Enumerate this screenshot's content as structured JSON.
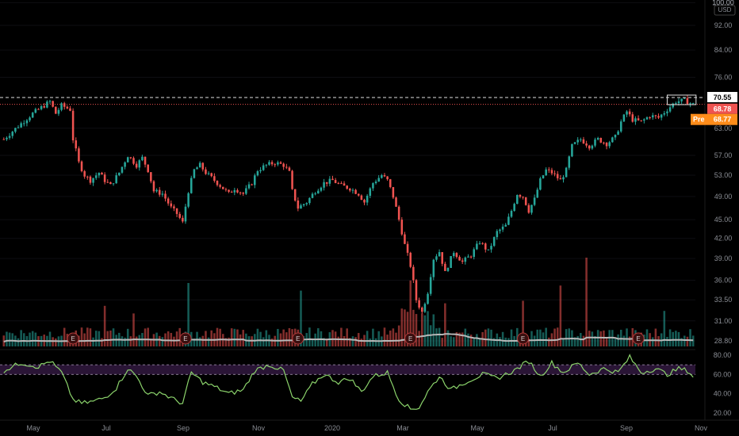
{
  "currency": "USD",
  "price_axis": {
    "ticks": [
      "100.00",
      "92.00",
      "84.00",
      "76.00",
      "70.55",
      "68.78",
      "68.77",
      "63.00",
      "57.00",
      "53.00",
      "49.00",
      "45.00",
      "42.00",
      "39.00",
      "36.00",
      "33.50",
      "31.00",
      "28.80"
    ],
    "tick_values": [
      100,
      92,
      84,
      76,
      63,
      57,
      53,
      49,
      45,
      42,
      39,
      36,
      33.5,
      31,
      28.8
    ],
    "tick_labels": [
      "100.00",
      "92.00",
      "84.00",
      "76.00",
      "63.00",
      "57.00",
      "53.00",
      "49.00",
      "45.00",
      "42.00",
      "39.00",
      "36.00",
      "33.50",
      "31.00",
      "28.80"
    ],
    "scale": "log"
  },
  "rsi_axis": {
    "tick_values": [
      80,
      60,
      40,
      20
    ],
    "tick_labels": [
      "80.00",
      "60.00",
      "40.00",
      "20.00"
    ],
    "overbought": 70,
    "oversold": 60
  },
  "time_axis": {
    "labels": [
      "May",
      "Jul",
      "Sep",
      "Nov",
      "2020",
      "Mar",
      "May",
      "Jul",
      "Sep",
      "Nov"
    ]
  },
  "badges": {
    "high_line": "70.55",
    "last_price": "68.78",
    "pre_label": "Pre",
    "pre_price": "68.77"
  },
  "earnings_marker": "E",
  "colors": {
    "up": "#26a69a",
    "down": "#ef5350",
    "rsi_line": "#8bd36b",
    "rsi_band": "#2a1536",
    "volume_ma": "#b8b8b8",
    "high_line": "#e0e0e0",
    "last_line": "#ef5350",
    "pre_badge": "#ff8c1a",
    "last_badge": "#ef5350"
  },
  "chart_data": {
    "type": "candlestick",
    "price_anchors": [
      {
        "x": 0,
        "y": 60.5
      },
      {
        "x": 5,
        "y": 63.5
      },
      {
        "x": 10,
        "y": 66.5
      },
      {
        "x": 14,
        "y": 68.5
      },
      {
        "x": 16,
        "y": 69.5
      },
      {
        "x": 18,
        "y": 66.5
      },
      {
        "x": 20,
        "y": 68.5
      },
      {
        "x": 23,
        "y": 67.5
      },
      {
        "x": 24,
        "y": 60.5
      },
      {
        "x": 26,
        "y": 55.5
      },
      {
        "x": 28,
        "y": 53.0
      },
      {
        "x": 30,
        "y": 52.0
      },
      {
        "x": 33,
        "y": 53.5
      },
      {
        "x": 35,
        "y": 52.0
      },
      {
        "x": 37,
        "y": 51.0
      },
      {
        "x": 40,
        "y": 53.5
      },
      {
        "x": 43,
        "y": 57.0
      },
      {
        "x": 46,
        "y": 55.0
      },
      {
        "x": 48,
        "y": 56.5
      },
      {
        "x": 50,
        "y": 54.0
      },
      {
        "x": 52,
        "y": 50.0
      },
      {
        "x": 55,
        "y": 49.5
      },
      {
        "x": 58,
        "y": 47.0
      },
      {
        "x": 60,
        "y": 46.0
      },
      {
        "x": 62,
        "y": 44.5
      },
      {
        "x": 64,
        "y": 50.0
      },
      {
        "x": 66,
        "y": 54.0
      },
      {
        "x": 68,
        "y": 55.0
      },
      {
        "x": 70,
        "y": 53.5
      },
      {
        "x": 73,
        "y": 52.0
      },
      {
        "x": 76,
        "y": 50.5
      },
      {
        "x": 78,
        "y": 49.5
      },
      {
        "x": 80,
        "y": 50.5
      },
      {
        "x": 83,
        "y": 49.5
      },
      {
        "x": 86,
        "y": 51.5
      },
      {
        "x": 88,
        "y": 54.0
      },
      {
        "x": 91,
        "y": 55.0
      },
      {
        "x": 94,
        "y": 55.5
      },
      {
        "x": 97,
        "y": 55.0
      },
      {
        "x": 99,
        "y": 53.5
      },
      {
        "x": 100,
        "y": 50.0
      },
      {
        "x": 102,
        "y": 47.0
      },
      {
        "x": 105,
        "y": 48.0
      },
      {
        "x": 108,
        "y": 50.0
      },
      {
        "x": 111,
        "y": 51.5
      },
      {
        "x": 114,
        "y": 52.0
      },
      {
        "x": 117,
        "y": 51.0
      },
      {
        "x": 120,
        "y": 50.5
      },
      {
        "x": 123,
        "y": 49.5
      },
      {
        "x": 125,
        "y": 48.0
      },
      {
        "x": 128,
        "y": 51.5
      },
      {
        "x": 131,
        "y": 53.0
      },
      {
        "x": 133,
        "y": 52.0
      },
      {
        "x": 135,
        "y": 49.0
      },
      {
        "x": 137,
        "y": 45.0
      },
      {
        "x": 139,
        "y": 41.0
      },
      {
        "x": 141,
        "y": 38.0
      },
      {
        "x": 143,
        "y": 33.5
      },
      {
        "x": 145,
        "y": 32.0
      },
      {
        "x": 147,
        "y": 34.5
      },
      {
        "x": 149,
        "y": 39.0
      },
      {
        "x": 151,
        "y": 40.0
      },
      {
        "x": 153,
        "y": 37.0
      },
      {
        "x": 156,
        "y": 40.0
      },
      {
        "x": 159,
        "y": 38.5
      },
      {
        "x": 162,
        "y": 39.5
      },
      {
        "x": 165,
        "y": 41.5
      },
      {
        "x": 168,
        "y": 40.0
      },
      {
        "x": 171,
        "y": 43.0
      },
      {
        "x": 174,
        "y": 44.0
      },
      {
        "x": 176,
        "y": 46.5
      },
      {
        "x": 178,
        "y": 49.5
      },
      {
        "x": 180,
        "y": 49.0
      },
      {
        "x": 182,
        "y": 46.5
      },
      {
        "x": 184,
        "y": 48.5
      },
      {
        "x": 186,
        "y": 52.0
      },
      {
        "x": 188,
        "y": 54.0
      },
      {
        "x": 190,
        "y": 53.5
      },
      {
        "x": 193,
        "y": 52.0
      },
      {
        "x": 195,
        "y": 54.0
      },
      {
        "x": 197,
        "y": 59.0
      },
      {
        "x": 200,
        "y": 60.5
      },
      {
        "x": 203,
        "y": 59.0
      },
      {
        "x": 206,
        "y": 60.5
      },
      {
        "x": 209,
        "y": 59.5
      },
      {
        "x": 212,
        "y": 61.0
      },
      {
        "x": 214,
        "y": 64.5
      },
      {
        "x": 216,
        "y": 67.0
      },
      {
        "x": 218,
        "y": 65.0
      },
      {
        "x": 221,
        "y": 64.5
      },
      {
        "x": 224,
        "y": 66.0
      },
      {
        "x": 227,
        "y": 65.5
      },
      {
        "x": 230,
        "y": 67.5
      },
      {
        "x": 233,
        "y": 69.5
      },
      {
        "x": 236,
        "y": 69.8
      },
      {
        "x": 239,
        "y": 68.8
      }
    ],
    "candle_count": 240,
    "rsi_anchors": [
      {
        "x": 0,
        "y": 64
      },
      {
        "x": 6,
        "y": 72
      },
      {
        "x": 12,
        "y": 68
      },
      {
        "x": 16,
        "y": 74
      },
      {
        "x": 20,
        "y": 62
      },
      {
        "x": 24,
        "y": 34
      },
      {
        "x": 27,
        "y": 30
      },
      {
        "x": 31,
        "y": 32
      },
      {
        "x": 35,
        "y": 36
      },
      {
        "x": 39,
        "y": 46
      },
      {
        "x": 43,
        "y": 66
      },
      {
        "x": 46,
        "y": 58
      },
      {
        "x": 50,
        "y": 38
      },
      {
        "x": 54,
        "y": 42
      },
      {
        "x": 59,
        "y": 34
      },
      {
        "x": 62,
        "y": 30
      },
      {
        "x": 65,
        "y": 62
      },
      {
        "x": 69,
        "y": 52
      },
      {
        "x": 74,
        "y": 46
      },
      {
        "x": 78,
        "y": 40
      },
      {
        "x": 83,
        "y": 44
      },
      {
        "x": 87,
        "y": 64
      },
      {
        "x": 92,
        "y": 70
      },
      {
        "x": 97,
        "y": 64
      },
      {
        "x": 100,
        "y": 36
      },
      {
        "x": 103,
        "y": 32
      },
      {
        "x": 107,
        "y": 50
      },
      {
        "x": 111,
        "y": 60
      },
      {
        "x": 116,
        "y": 52
      },
      {
        "x": 120,
        "y": 56
      },
      {
        "x": 124,
        "y": 42
      },
      {
        "x": 128,
        "y": 58
      },
      {
        "x": 133,
        "y": 62
      },
      {
        "x": 137,
        "y": 34
      },
      {
        "x": 141,
        "y": 24
      },
      {
        "x": 144,
        "y": 26
      },
      {
        "x": 147,
        "y": 42
      },
      {
        "x": 151,
        "y": 58
      },
      {
        "x": 155,
        "y": 44
      },
      {
        "x": 160,
        "y": 52
      },
      {
        "x": 166,
        "y": 60
      },
      {
        "x": 171,
        "y": 56
      },
      {
        "x": 177,
        "y": 64
      },
      {
        "x": 182,
        "y": 74
      },
      {
        "x": 186,
        "y": 58
      },
      {
        "x": 190,
        "y": 72
      },
      {
        "x": 194,
        "y": 62
      },
      {
        "x": 199,
        "y": 72
      },
      {
        "x": 203,
        "y": 60
      },
      {
        "x": 208,
        "y": 66
      },
      {
        "x": 213,
        "y": 62
      },
      {
        "x": 217,
        "y": 78
      },
      {
        "x": 221,
        "y": 62
      },
      {
        "x": 226,
        "y": 66
      },
      {
        "x": 230,
        "y": 60
      },
      {
        "x": 234,
        "y": 66
      },
      {
        "x": 237,
        "y": 64
      },
      {
        "x": 239,
        "y": 58
      }
    ],
    "volume_spikes": [
      {
        "x": 35,
        "y": 3.2
      },
      {
        "x": 45,
        "y": 2.6
      },
      {
        "x": 64,
        "y": 5.0
      },
      {
        "x": 103,
        "y": 4.4
      },
      {
        "x": 141,
        "y": 5.2
      },
      {
        "x": 153,
        "y": 3.4
      },
      {
        "x": 180,
        "y": 3.6
      },
      {
        "x": 193,
        "y": 4.8
      },
      {
        "x": 202,
        "y": 7.0
      },
      {
        "x": 229,
        "y": 2.8
      }
    ],
    "earnings_at": [
      24,
      63,
      102,
      141,
      180,
      220
    ],
    "high_line_value": 70.55,
    "last_value": 68.78
  }
}
